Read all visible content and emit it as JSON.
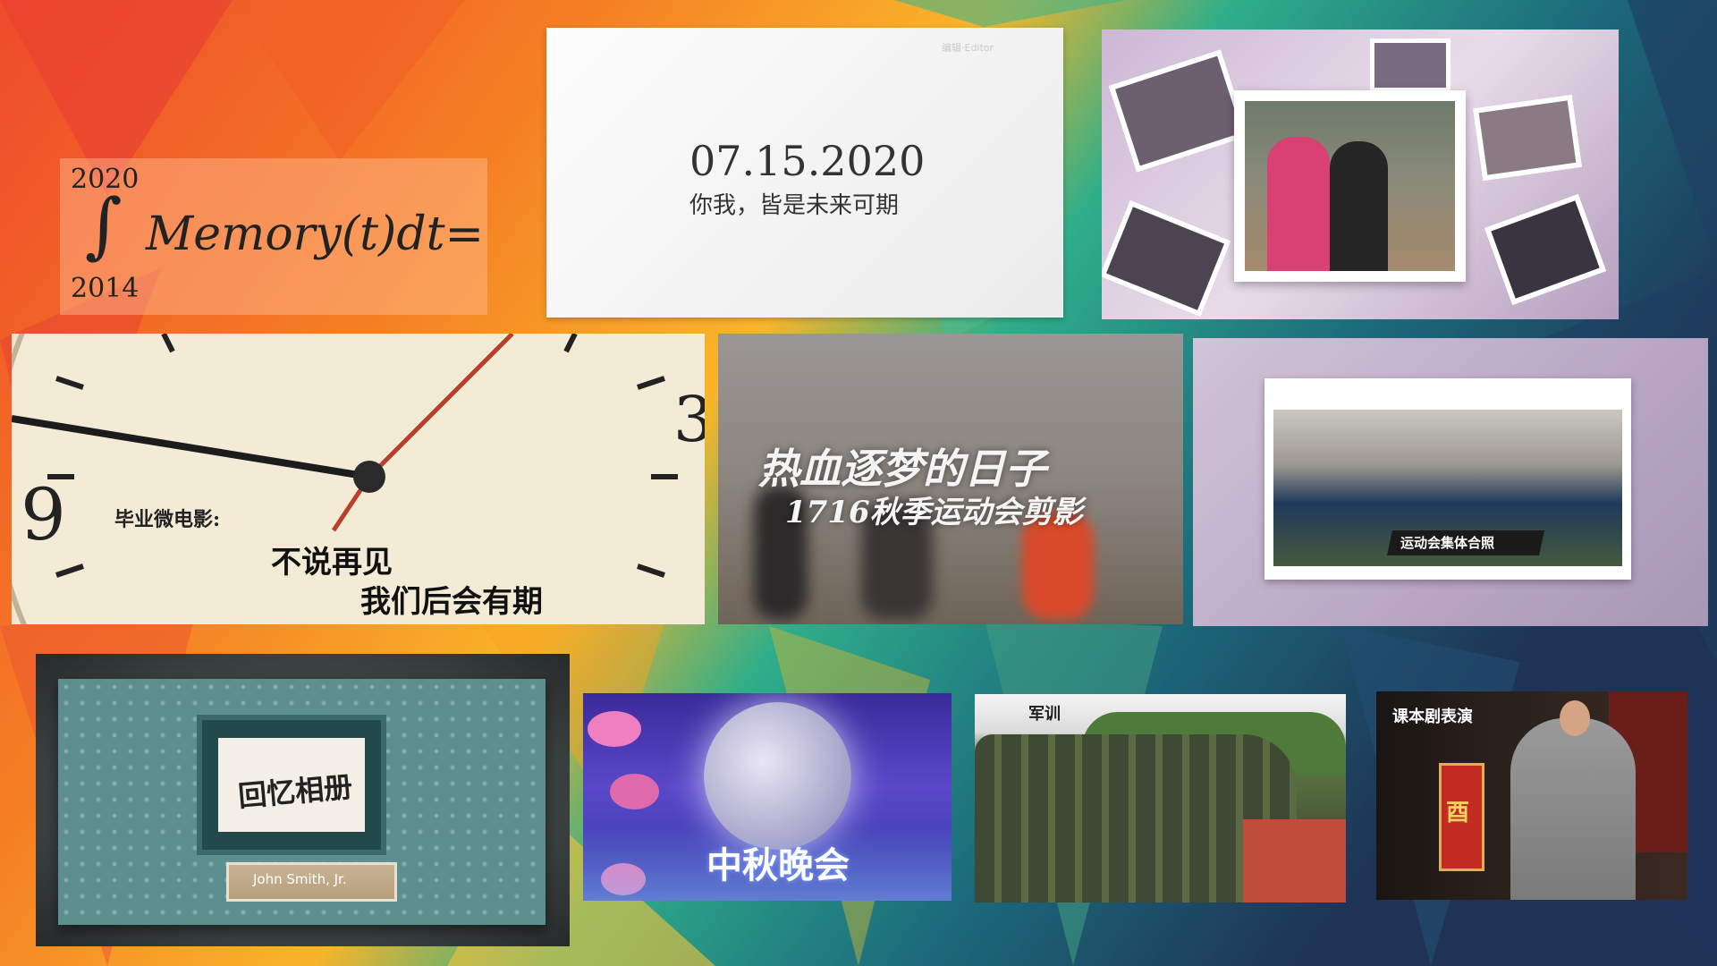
{
  "formula": {
    "upper_limit": "2020",
    "lower_limit": "2014",
    "integral_sign": "∫",
    "expression": "Memory(t)dt="
  },
  "date_card": {
    "date": "07.15.2020",
    "subtitle": "你我，皆是未来可期",
    "watermark": "编辑·Editor"
  },
  "clock_tile": {
    "line1": "毕业微电影:",
    "line2": "不说再见",
    "line3": "我们后会有期"
  },
  "sports_tile": {
    "title": "热血逐梦的日子",
    "subtitle": "1716秋季运动会剪影"
  },
  "group_tile": {
    "caption": "运动会集体合照"
  },
  "album_tile": {
    "title": "回忆相册",
    "nameplate": "John Smith, Jr."
  },
  "mid_autumn_tile": {
    "title": "中秋晚会"
  },
  "military_tile": {
    "label": "军训"
  },
  "drama_tile": {
    "label": "课本剧表演",
    "banner_char": "酉"
  },
  "colors": {
    "accent_red": "#e8431f",
    "accent_orange": "#f7a21b",
    "accent_teal": "#2aa98f",
    "accent_navy": "#1d3d63"
  }
}
